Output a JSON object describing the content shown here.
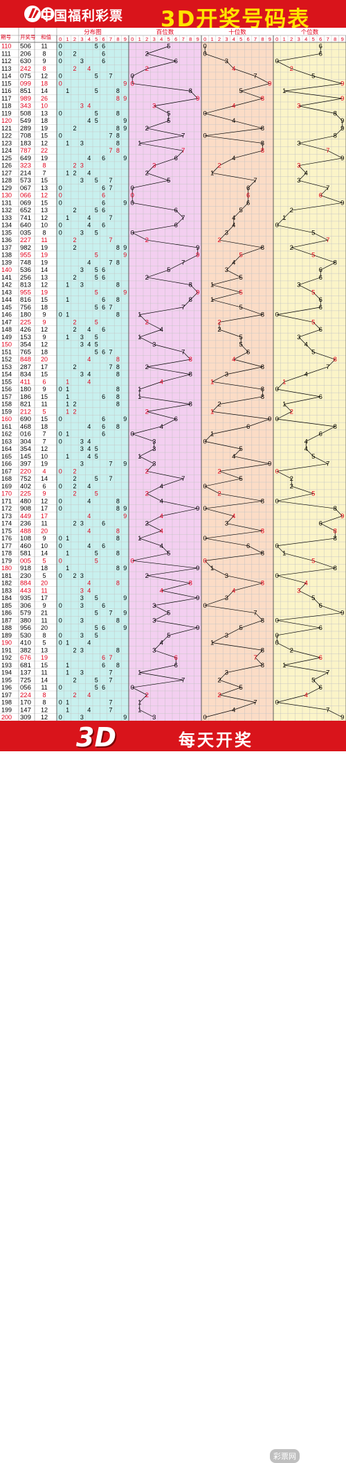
{
  "header": {
    "brand": "中国福利彩票",
    "title": "3D开奖号码表"
  },
  "footer": {
    "badge": "3D",
    "slogan": "每天开奖",
    "watermark": "彩票网"
  },
  "colors": {
    "header_bg": "#d9141b",
    "title_yellow": "#ffe400",
    "section_fenbu": "#c8f0ee",
    "section_bai": "#f3cff0",
    "section_shi": "#fbdcc6",
    "section_ge": "#fbf4c8",
    "highlight_red": "#e0001b"
  },
  "chart_data": {
    "type": "table",
    "columns": {
      "period": "期号",
      "number": "开奖号",
      "sum": "和值",
      "distribution": "分布图",
      "hundreds": "百位数",
      "tens": "十位数",
      "units": "个位数"
    },
    "digit_labels": [
      "0",
      "1",
      "2",
      "3",
      "4",
      "5",
      "6",
      "7",
      "8",
      "9"
    ],
    "rows": [
      {
        "p": "110",
        "n": "506",
        "s": "11"
      },
      {
        "p": "111",
        "n": "206",
        "s": "8"
      },
      {
        "p": "112",
        "n": "630",
        "s": "9"
      },
      {
        "p": "113",
        "n": "242",
        "s": "8"
      },
      {
        "p": "114",
        "n": "075",
        "s": "12"
      },
      {
        "p": "115",
        "n": "099",
        "s": "18"
      },
      {
        "p": "116",
        "n": "851",
        "s": "14"
      },
      {
        "p": "117",
        "n": "989",
        "s": "26"
      },
      {
        "p": "118",
        "n": "343",
        "s": "10"
      },
      {
        "p": "119",
        "n": "508",
        "s": "13"
      },
      {
        "p": "120",
        "n": "549",
        "s": "18"
      },
      {
        "p": "121",
        "n": "289",
        "s": "19"
      },
      {
        "p": "122",
        "n": "708",
        "s": "15"
      },
      {
        "p": "123",
        "n": "183",
        "s": "12"
      },
      {
        "p": "124",
        "n": "787",
        "s": "22"
      },
      {
        "p": "125",
        "n": "649",
        "s": "19"
      },
      {
        "p": "126",
        "n": "323",
        "s": "8"
      },
      {
        "p": "127",
        "n": "214",
        "s": "7"
      },
      {
        "p": "128",
        "n": "573",
        "s": "15"
      },
      {
        "p": "129",
        "n": "067",
        "s": "13"
      },
      {
        "p": "130",
        "n": "066",
        "s": "12"
      },
      {
        "p": "131",
        "n": "069",
        "s": "15"
      },
      {
        "p": "132",
        "n": "652",
        "s": "13"
      },
      {
        "p": "133",
        "n": "741",
        "s": "12"
      },
      {
        "p": "134",
        "n": "640",
        "s": "10"
      },
      {
        "p": "135",
        "n": "035",
        "s": "8"
      },
      {
        "p": "136",
        "n": "227",
        "s": "11"
      },
      {
        "p": "137",
        "n": "982",
        "s": "19"
      },
      {
        "p": "138",
        "n": "955",
        "s": "19"
      },
      {
        "p": "139",
        "n": "748",
        "s": "19"
      },
      {
        "p": "140",
        "n": "536",
        "s": "14"
      },
      {
        "p": "141",
        "n": "256",
        "s": "13"
      },
      {
        "p": "142",
        "n": "813",
        "s": "12"
      },
      {
        "p": "143",
        "n": "955",
        "s": "19"
      },
      {
        "p": "144",
        "n": "816",
        "s": "15"
      },
      {
        "p": "145",
        "n": "756",
        "s": "18"
      },
      {
        "p": "146",
        "n": "180",
        "s": "9"
      },
      {
        "p": "147",
        "n": "225",
        "s": "9"
      },
      {
        "p": "148",
        "n": "426",
        "s": "12"
      },
      {
        "p": "149",
        "n": "153",
        "s": "9"
      },
      {
        "p": "150",
        "n": "354",
        "s": "12"
      },
      {
        "p": "151",
        "n": "765",
        "s": "18"
      },
      {
        "p": "152",
        "n": "848",
        "s": "20"
      },
      {
        "p": "153",
        "n": "287",
        "s": "17"
      },
      {
        "p": "154",
        "n": "834",
        "s": "15"
      },
      {
        "p": "155",
        "n": "411",
        "s": "6"
      },
      {
        "p": "156",
        "n": "180",
        "s": "9"
      },
      {
        "p": "157",
        "n": "186",
        "s": "15"
      },
      {
        "p": "158",
        "n": "821",
        "s": "11"
      },
      {
        "p": "159",
        "n": "212",
        "s": "5"
      },
      {
        "p": "160",
        "n": "690",
        "s": "15"
      },
      {
        "p": "161",
        "n": "468",
        "s": "18"
      },
      {
        "p": "162",
        "n": "016",
        "s": "7"
      },
      {
        "p": "163",
        "n": "304",
        "s": "7"
      },
      {
        "p": "164",
        "n": "354",
        "s": "12"
      },
      {
        "p": "165",
        "n": "145",
        "s": "10"
      },
      {
        "p": "166",
        "n": "397",
        "s": "19"
      },
      {
        "p": "167",
        "n": "220",
        "s": "4"
      },
      {
        "p": "168",
        "n": "752",
        "s": "14"
      },
      {
        "p": "169",
        "n": "402",
        "s": "6"
      },
      {
        "p": "170",
        "n": "225",
        "s": "9"
      },
      {
        "p": "171",
        "n": "480",
        "s": "12"
      },
      {
        "p": "172",
        "n": "908",
        "s": "17"
      },
      {
        "p": "173",
        "n": "449",
        "s": "17"
      },
      {
        "p": "174",
        "n": "236",
        "s": "11"
      },
      {
        "p": "175",
        "n": "488",
        "s": "20"
      },
      {
        "p": "176",
        "n": "108",
        "s": "9"
      },
      {
        "p": "177",
        "n": "460",
        "s": "10"
      },
      {
        "p": "178",
        "n": "581",
        "s": "14"
      },
      {
        "p": "179",
        "n": "005",
        "s": "5"
      },
      {
        "p": "180",
        "n": "918",
        "s": "18"
      },
      {
        "p": "181",
        "n": "230",
        "s": "5"
      },
      {
        "p": "182",
        "n": "884",
        "s": "20"
      },
      {
        "p": "183",
        "n": "443",
        "s": "11"
      },
      {
        "p": "184",
        "n": "935",
        "s": "17"
      },
      {
        "p": "185",
        "n": "306",
        "s": "9"
      },
      {
        "p": "186",
        "n": "579",
        "s": "21"
      },
      {
        "p": "187",
        "n": "380",
        "s": "11"
      },
      {
        "p": "188",
        "n": "956",
        "s": "20"
      },
      {
        "p": "189",
        "n": "530",
        "s": "8"
      },
      {
        "p": "190",
        "n": "410",
        "s": "5"
      },
      {
        "p": "191",
        "n": "382",
        "s": "13"
      },
      {
        "p": "192",
        "n": "676",
        "s": "19"
      },
      {
        "p": "193",
        "n": "681",
        "s": "15"
      },
      {
        "p": "194",
        "n": "137",
        "s": "11"
      },
      {
        "p": "195",
        "n": "725",
        "s": "14"
      },
      {
        "p": "196",
        "n": "056",
        "s": "11"
      },
      {
        "p": "197",
        "n": "224",
        "s": "8"
      },
      {
        "p": "198",
        "n": "170",
        "s": "8"
      },
      {
        "p": "199",
        "n": "147",
        "s": "12"
      },
      {
        "p": "200",
        "n": "309",
        "s": "12"
      }
    ]
  }
}
